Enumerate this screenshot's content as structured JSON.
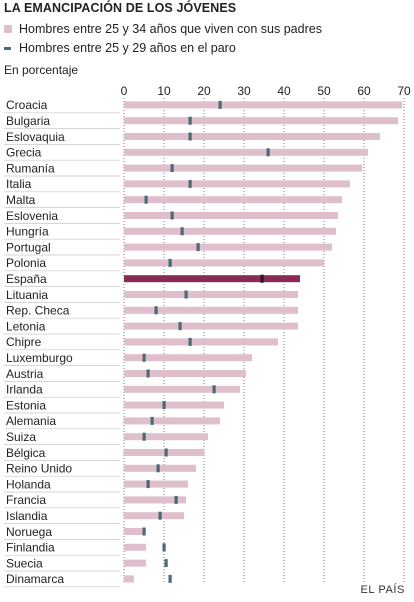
{
  "title": "LA EMANCIPACIÓN DE LOS JÓVENES",
  "legend": {
    "bars": "Hombres entre 25 y 34 años que viven con sus padres",
    "marks": "Hombres entre 25 y 29 años en el paro"
  },
  "unit": "En porcentaje",
  "source": "EL PAÍS",
  "colors": {
    "bar": "#e0bfcc",
    "mark": "#4a6a74",
    "highlight_bar": "#8b2a52",
    "highlight_mark": "#1e1e1e",
    "grid": "#222222"
  },
  "chart_data": {
    "type": "bar",
    "orientation": "horizontal",
    "xlim": [
      0,
      70
    ],
    "x_ticks": [
      0,
      10,
      20,
      30,
      40,
      50,
      60,
      70
    ],
    "grid": true,
    "highlight": "España",
    "categories": [
      "Croacia",
      "Bulgaria",
      "Eslovaquia",
      "Grecia",
      "Rumanía",
      "Italia",
      "Malta",
      "Eslovenia",
      "Hungría",
      "Portugal",
      "Polonia",
      "España",
      "Lituania",
      "Rep. Checa",
      "Letonia",
      "Chipre",
      "Luxemburgo",
      "Austria",
      "Irlanda",
      "Estonia",
      "Alemania",
      "Suiza",
      "Bélgica",
      "Reino Unido",
      "Holanda",
      "Francia",
      "Islandia",
      "Noruega",
      "Finlandia",
      "Suecia",
      "Dinamarca"
    ],
    "series": [
      {
        "name": "Hombres entre 25 y 34 años que viven con sus padres",
        "values": [
          69.5,
          68.5,
          64,
          61,
          59.5,
          56.5,
          54.5,
          53.5,
          53,
          52,
          50,
          44,
          43.5,
          43.5,
          43.5,
          38.5,
          32,
          30.5,
          29,
          25,
          24,
          21,
          20,
          18,
          16,
          15.5,
          15,
          5,
          5.5,
          5.5,
          2.5
        ]
      },
      {
        "name": "Hombres entre 25 y 29 años en el paro",
        "values": [
          24,
          16.5,
          16.5,
          36,
          12,
          16.5,
          5.5,
          12,
          14.5,
          18.5,
          11.5,
          34.5,
          15.5,
          8,
          14,
          16.5,
          5,
          6,
          22.5,
          10,
          7,
          5,
          10.5,
          8.5,
          6,
          13,
          9,
          5,
          10,
          10.5,
          11.5
        ]
      }
    ]
  }
}
